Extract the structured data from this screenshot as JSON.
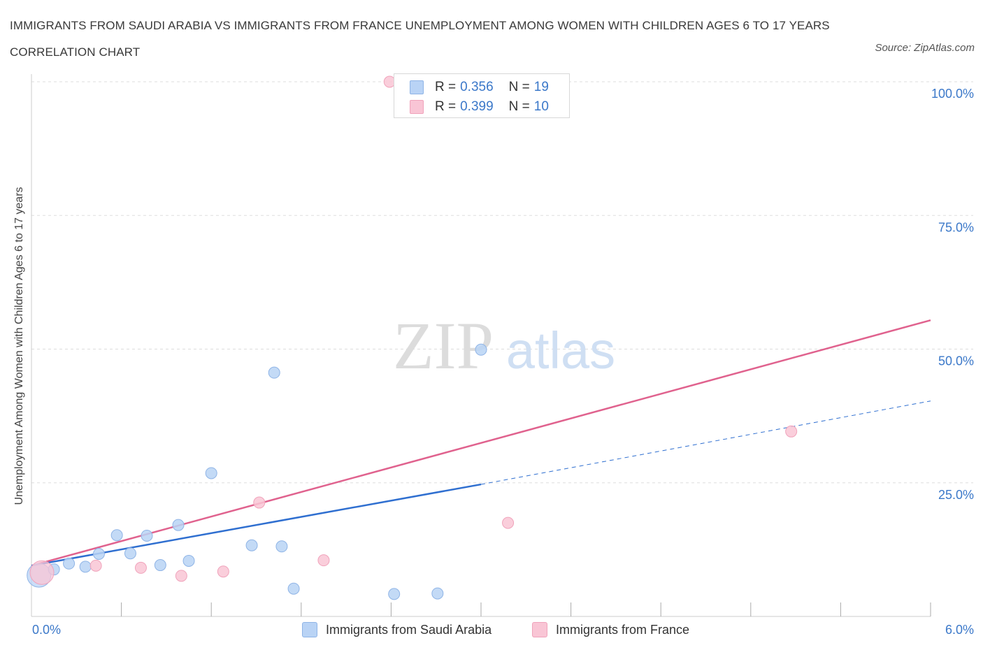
{
  "header": {
    "title": "IMMIGRANTS FROM SAUDI ARABIA VS IMMIGRANTS FROM FRANCE UNEMPLOYMENT AMONG WOMEN WITH CHILDREN AGES 6 TO 17 YEARS CORRELATION CHART",
    "source": "Source: ZipAtlas.com"
  },
  "legend_top": [
    {
      "r_label": "R =",
      "r_value": "0.356",
      "n_label": "N =",
      "n_value": "19"
    },
    {
      "r_label": "R =",
      "r_value": "0.399",
      "n_label": "N =",
      "n_value": "10"
    }
  ],
  "x_axis": {
    "min_label": "0.0%",
    "max_label": "6.0%"
  },
  "watermark": {
    "part1": "ZIP",
    "part2": "atlas"
  },
  "colors": {
    "blue_fill": "#b9d3f5",
    "blue_stroke": "#8fb4e6",
    "blue_line": "#2f6fd0",
    "pink_fill": "#f9c5d5",
    "pink_stroke": "#f0a3bb",
    "pink_line": "#e0628e",
    "grid": "#dddddd",
    "tick_text": "#3b78c9"
  },
  "chart_data": {
    "type": "scatter",
    "title": "IMMIGRANTS FROM SAUDI ARABIA VS IMMIGRANTS FROM FRANCE UNEMPLOYMENT AMONG WOMEN WITH CHILDREN AGES 6 TO 17 YEARS CORRELATION CHART",
    "xlabel": "",
    "ylabel": "Unemployment Among Women with Children Ages 6 to 17 years",
    "xlim": [
      0,
      6
    ],
    "ylim": [
      0,
      100
    ],
    "x_unit": "%",
    "y_unit": "%",
    "y_ticks": [
      {
        "value": 25,
        "label": "25.0%"
      },
      {
        "value": 50,
        "label": "50.0%"
      },
      {
        "value": 75,
        "label": "75.0%"
      },
      {
        "value": 100,
        "label": "100.0%"
      }
    ],
    "grid": true,
    "legend_position": "bottom",
    "series": [
      {
        "name": "Immigrants from Saudi Arabia",
        "color": "#b9d3f5",
        "points": [
          {
            "x": 0.05,
            "y": 7.7,
            "big": true
          },
          {
            "x": 0.15,
            "y": 8.8
          },
          {
            "x": 0.25,
            "y": 9.9
          },
          {
            "x": 0.36,
            "y": 9.3
          },
          {
            "x": 0.45,
            "y": 11.7
          },
          {
            "x": 0.57,
            "y": 15.2
          },
          {
            "x": 0.66,
            "y": 11.8
          },
          {
            "x": 0.77,
            "y": 15.1
          },
          {
            "x": 0.86,
            "y": 9.6
          },
          {
            "x": 0.98,
            "y": 17.1
          },
          {
            "x": 1.05,
            "y": 10.4
          },
          {
            "x": 1.2,
            "y": 26.8
          },
          {
            "x": 1.47,
            "y": 13.3
          },
          {
            "x": 1.62,
            "y": 45.6
          },
          {
            "x": 1.67,
            "y": 13.1
          },
          {
            "x": 1.75,
            "y": 5.2
          },
          {
            "x": 2.42,
            "y": 4.2
          },
          {
            "x": 2.71,
            "y": 4.3
          },
          {
            "x": 3.0,
            "y": 49.9
          }
        ],
        "trend": {
          "x0": 0.0,
          "y0": 9.5,
          "x1": 3.0,
          "y1": 24.7,
          "dash_to_x": 6.0,
          "dash_to_y": 40.3
        }
      },
      {
        "name": "Immigrants from France",
        "color": "#f9c5d5",
        "points": [
          {
            "x": 0.07,
            "y": 8.2,
            "big": true
          },
          {
            "x": 0.43,
            "y": 9.5
          },
          {
            "x": 0.73,
            "y": 9.1
          },
          {
            "x": 1.0,
            "y": 7.6
          },
          {
            "x": 1.28,
            "y": 8.4
          },
          {
            "x": 1.52,
            "y": 21.3
          },
          {
            "x": 1.95,
            "y": 10.5
          },
          {
            "x": 2.39,
            "y": 100.0
          },
          {
            "x": 3.18,
            "y": 17.5
          },
          {
            "x": 5.07,
            "y": 34.6
          }
        ],
        "trend": {
          "x0": 0.0,
          "y0": 9.5,
          "x1": 6.0,
          "y1": 55.4
        }
      }
    ]
  }
}
